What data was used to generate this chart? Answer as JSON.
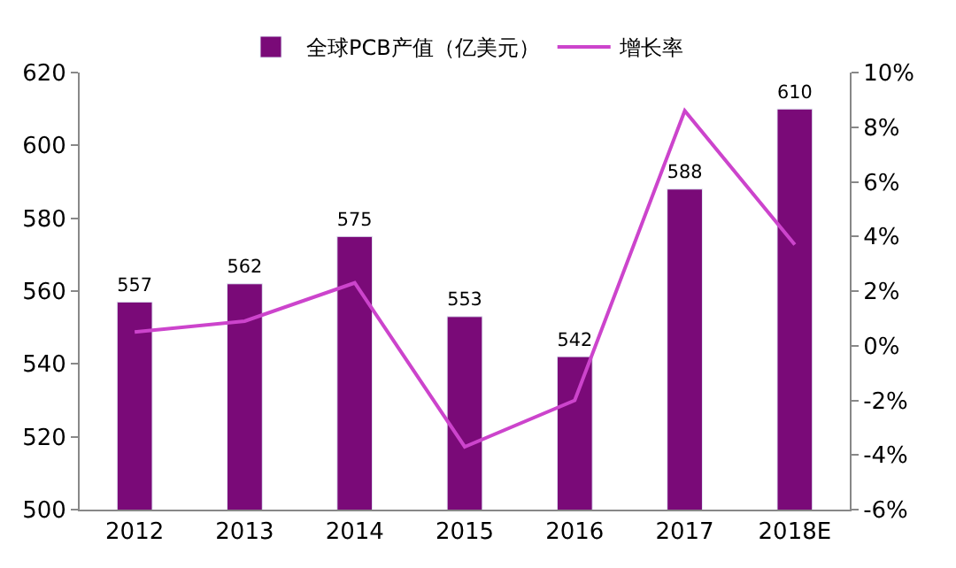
{
  "chart_data": {
    "type": "bar",
    "categories": [
      "2012",
      "2013",
      "2014",
      "2015",
      "2016",
      "2017",
      "2018E"
    ],
    "series": [
      {
        "name": "全球PCB产值（亿美元）",
        "color": "#7a0a78",
        "values": [
          557,
          562,
          575,
          553,
          542,
          588,
          610
        ],
        "data_labels": true
      },
      {
        "name": "增长率",
        "type": "line",
        "axis": "y2",
        "color": "#cc44cc",
        "values": [
          0.5,
          0.9,
          2.3,
          -3.7,
          -2.0,
          8.6,
          3.7
        ]
      }
    ],
    "ylim": [
      500,
      620
    ],
    "yticks": [
      500,
      520,
      540,
      560,
      580,
      600,
      620
    ],
    "y2lim": [
      -6,
      10
    ],
    "y2ticks": [
      {
        "value": -6,
        "label": "-6%"
      },
      {
        "value": -4,
        "label": "-4%"
      },
      {
        "value": -2,
        "label": "-2%"
      },
      {
        "value": 0,
        "label": "0%"
      },
      {
        "value": 2,
        "label": "2%"
      },
      {
        "value": 4,
        "label": "4%"
      },
      {
        "value": 6,
        "label": "6%"
      },
      {
        "value": 8,
        "label": "8%"
      },
      {
        "value": 10,
        "label": "10%"
      }
    ],
    "legend": "top",
    "marker": "none",
    "line_style": "solid"
  }
}
